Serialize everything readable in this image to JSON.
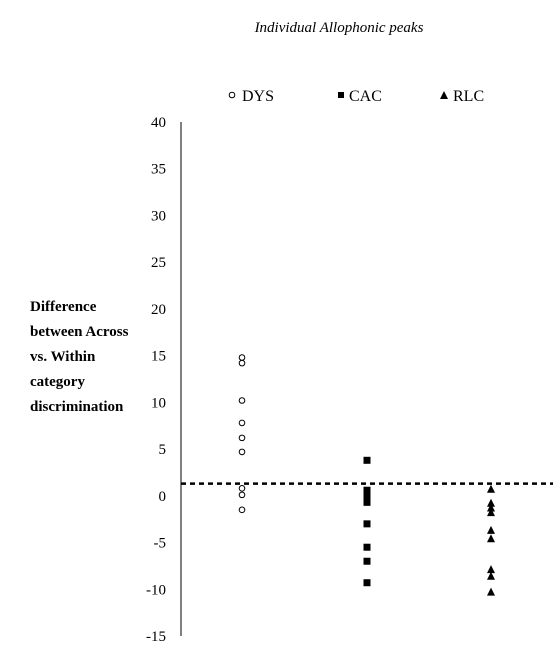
{
  "chart_data": {
    "type": "scatter",
    "title": "Individual Allophonic peaks",
    "ylabel_lines": [
      "Difference",
      "between Across",
      "vs. Within",
      "category",
      "discrimination"
    ],
    "ylim": [
      -15,
      40
    ],
    "yticks": [
      40,
      35,
      30,
      25,
      20,
      15,
      10,
      5,
      0,
      -5,
      -10,
      -15
    ],
    "reference_line_y": 1.3,
    "legend_position": "top",
    "series": [
      {
        "name": "DYS",
        "marker": "open-circle",
        "color": "#000000",
        "values": [
          14.8,
          14.2,
          10.2,
          7.8,
          6.2,
          4.7,
          0.8,
          0.1,
          -1.5
        ]
      },
      {
        "name": "CAC",
        "marker": "filled-square",
        "color": "#000000",
        "values": [
          3.8,
          0.6,
          0.2,
          -0.4,
          -0.7,
          -3.0,
          -5.5,
          -7.0,
          -9.3
        ]
      },
      {
        "name": "RLC",
        "marker": "filled-triangle",
        "color": "#000000",
        "values": [
          0.7,
          -0.8,
          -1.3,
          -1.8,
          -3.7,
          -4.6,
          -7.9,
          -8.6,
          -10.3
        ]
      }
    ]
  }
}
